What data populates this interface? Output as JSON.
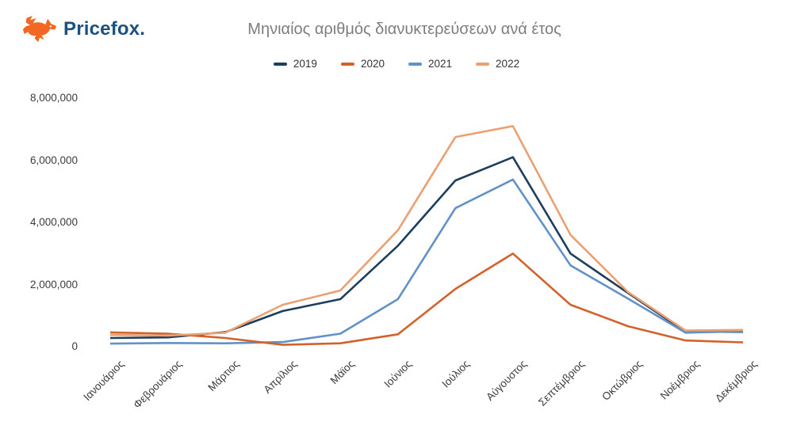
{
  "header": {
    "logo_text": "Pricefox.",
    "title": "Μηνιαίος αριθμός διανυκτερεύσεων ανά έτος"
  },
  "colors": {
    "logo_orange": "#f26822",
    "logo_navy": "#1b5180",
    "title_gray": "#7d7d7d"
  },
  "chart_data": {
    "type": "line",
    "title": "Μηνιαίος αριθμός διανυκτερεύσεων ανά έτος",
    "categories": [
      "Ιανουάριος",
      "Φεβρουάριος",
      "Μάρτιος",
      "Απρίλιος",
      "Μάϊος",
      "Ιούνιος",
      "Ιούλιος",
      "Αύγουστος",
      "Σεπτέμβριος",
      "Οκτώβριος",
      "Νοέμβριος",
      "Δεκέμβριος"
    ],
    "series": [
      {
        "name": "2019",
        "color": "#1d3e5c",
        "values": [
          280000,
          300000,
          470000,
          1150000,
          1530000,
          3250000,
          5350000,
          6100000,
          3000000,
          1730000,
          480000,
          480000
        ]
      },
      {
        "name": "2020",
        "color": "#d2622b",
        "values": [
          460000,
          420000,
          280000,
          60000,
          110000,
          400000,
          1860000,
          3000000,
          1350000,
          660000,
          200000,
          140000
        ]
      },
      {
        "name": "2021",
        "color": "#6191c7",
        "values": [
          100000,
          120000,
          110000,
          150000,
          420000,
          1530000,
          4460000,
          5380000,
          2620000,
          1550000,
          450000,
          500000
        ]
      },
      {
        "name": "2022",
        "color": "#eba072",
        "values": [
          380000,
          360000,
          450000,
          1350000,
          1810000,
          3750000,
          6750000,
          7100000,
          3600000,
          1760000,
          520000,
          540000
        ]
      }
    ],
    "ylim": [
      0,
      8000000
    ],
    "yticks": [
      {
        "value": 0,
        "label": "0"
      },
      {
        "value": 2000000,
        "label": "2,000,000"
      },
      {
        "value": 4000000,
        "label": "4,000,000"
      },
      {
        "value": 6000000,
        "label": "6,000,000"
      },
      {
        "value": 8000000,
        "label": "8,000,000"
      }
    ],
    "grid": false,
    "legend_position": "top"
  }
}
